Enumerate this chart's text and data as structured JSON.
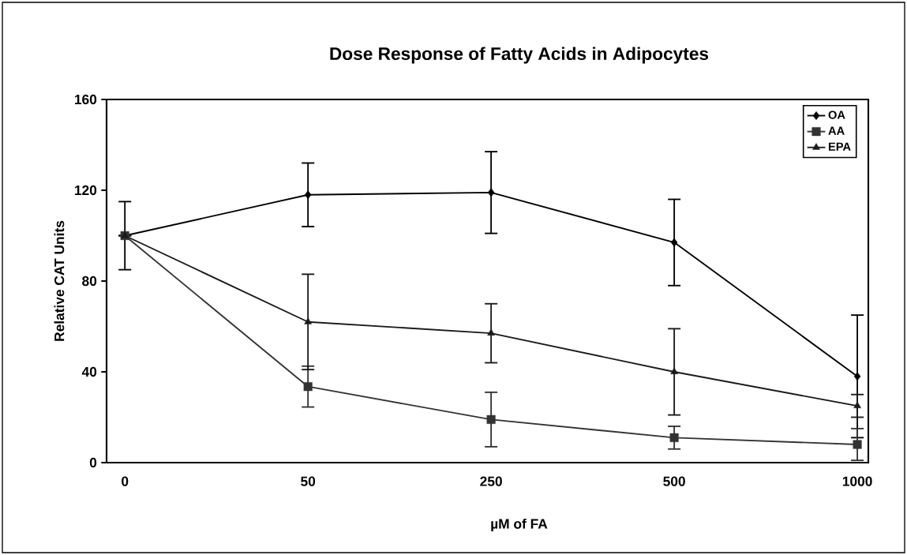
{
  "chart_data": {
    "type": "line",
    "title": "Dose Response of Fatty Acids in Adipocytes",
    "xlabel": "µM of FA",
    "ylabel": "Relative CAT Units",
    "categories": [
      "0",
      "50",
      "250",
      "500",
      "1000"
    ],
    "series": [
      {
        "name": "OA",
        "color": "#000000",
        "marker": "diamond",
        "values": [
          100,
          118,
          119,
          97,
          38
        ],
        "errors": [
          15,
          14,
          18,
          19,
          27
        ]
      },
      {
        "name": "AA",
        "color": "#333333",
        "marker": "square",
        "values": [
          100,
          33.5,
          19,
          11,
          8
        ],
        "errors": [
          null,
          9,
          12,
          5,
          7
        ]
      },
      {
        "name": "EPA",
        "color": "#1a1a1a",
        "marker": "triangle",
        "values": [
          100,
          62,
          57,
          40,
          25
        ],
        "errors": [
          null,
          21,
          13,
          19,
          5
        ]
      }
    ],
    "ylim": [
      0,
      160
    ],
    "yticks": [
      0,
      40,
      80,
      120,
      160
    ],
    "grid": false,
    "legend": "top right",
    "line_style": "solid"
  }
}
